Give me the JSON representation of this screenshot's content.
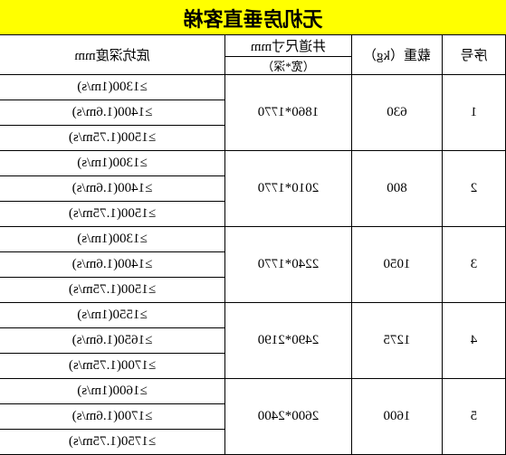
{
  "title": "无机房垂直客梯",
  "header": {
    "seq": "序号",
    "load": "载重（kg）",
    "shaft": "井道尺寸mm",
    "shaft_sub": "（宽*深）",
    "depth": "底坑深度mm"
  },
  "rows": [
    {
      "seq": "1",
      "load": "630",
      "shaft": "1860*1770",
      "depths": [
        "≥1300(1m/s)",
        "≥1400(1.6m/s)",
        "≥1500(1.75m/s)"
      ]
    },
    {
      "seq": "2",
      "load": "800",
      "shaft": "2010*1770",
      "depths": [
        "≥1300(1m/s)",
        "≥1400(1.6m/s)",
        "≥1500(1.75m/s)"
      ]
    },
    {
      "seq": "3",
      "load": "1050",
      "shaft": "2240*1770",
      "depths": [
        "≥1300(1m/s)",
        "≥1400(1.6m/s)",
        "≥1500(1.75m/s)"
      ]
    },
    {
      "seq": "4",
      "load": "1275",
      "shaft": "2490*2190",
      "depths": [
        "≥1550(1m/s)",
        "≥1650(1.6m/s)",
        "≥1700(1.75m/s)"
      ]
    },
    {
      "seq": "5",
      "load": "1600",
      "shaft": "2600*2400",
      "depths": [
        "≥1600(1m/s)",
        "≥1700(1.6m/s)",
        "≥1750(1.75m/s)"
      ]
    }
  ],
  "colors": {
    "title_bg": "#ffff00",
    "border": "#000000",
    "bg": "#ffffff"
  }
}
